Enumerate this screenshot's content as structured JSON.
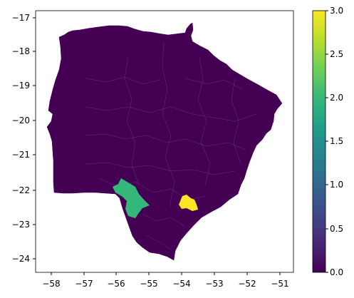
{
  "map": {
    "x_ticks": [
      "−58",
      "−57",
      "−56",
      "−55",
      "−54",
      "−53",
      "−52",
      "−51"
    ],
    "y_ticks": [
      "−17",
      "−18",
      "−19",
      "−20",
      "−21",
      "−22",
      "−23",
      "−24"
    ],
    "x_range": [
      -58.5,
      -50.6
    ],
    "y_range": [
      -24.4,
      -16.7
    ],
    "base_color": "#440154",
    "region_border_color": "#6b4a8a",
    "highlight_regions": [
      {
        "value": 2,
        "color": "#35b779",
        "description": "south-west municipalities"
      },
      {
        "value": 3,
        "color": "#fde725",
        "description": "south municipality"
      }
    ]
  },
  "colorbar": {
    "colormap": "viridis",
    "range": [
      0.0,
      3.0
    ],
    "tick_labels": [
      "0.0",
      "0.5",
      "1.0",
      "1.5",
      "2.0",
      "2.5",
      "3.0"
    ],
    "stops": [
      "#440154",
      "#482878",
      "#3e4989",
      "#31688e",
      "#26828e",
      "#1f9e89",
      "#35b779",
      "#6ece58",
      "#b5de2b",
      "#fde725"
    ]
  }
}
